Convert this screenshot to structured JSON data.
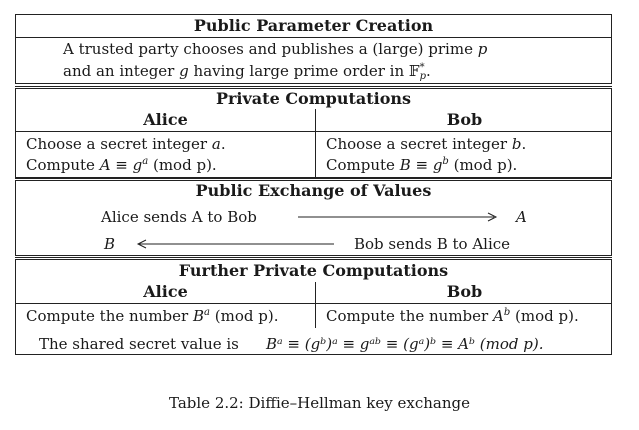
{
  "sections": {
    "public_parameter": {
      "title": "Public Parameter Creation",
      "line1_text": "A trusted party chooses and publishes a (large) prime",
      "line1_var": "p",
      "line2_text": "and an integer",
      "line2_var": "g",
      "line2_rest": "having large prime order in",
      "line2_field": "𝔽",
      "line2_field_sub": "p",
      "line2_field_sup": "*",
      "line2_end": "."
    },
    "private_computations": {
      "title": "Private Computations",
      "alice_header": "Alice",
      "bob_header": "Bob",
      "alice_line1": "Choose a secret integer",
      "alice_line1_var": "a",
      "alice_line2_pre": "Compute",
      "alice_line2_expr": "A ≡ g",
      "alice_line2_exp": "a",
      "alice_line2_mod": "(mod p).",
      "bob_line1": "Choose a secret integer",
      "bob_line1_var": "b",
      "bob_line2_pre": "Compute",
      "bob_line2_expr": "B ≡ g",
      "bob_line2_exp": "b",
      "bob_line2_mod": "(mod p)."
    },
    "public_exchange": {
      "title": "Public Exchange of Values",
      "row1_left": "Alice sends A to Bob",
      "row1_right": "A",
      "row2_left": "B",
      "row2_right": "Bob sends B to Alice"
    },
    "further_private": {
      "title": "Further Private Computations",
      "alice_header": "Alice",
      "bob_header": "Bob",
      "alice_line_pre": "Compute the number",
      "alice_base": "B",
      "alice_exp": "a",
      "alice_mod": "(mod p).",
      "bob_line_pre": "Compute the number",
      "bob_base": "A",
      "bob_exp": "b",
      "bob_mod": "(mod p).",
      "shared_label": "The shared secret value is",
      "shared_expr": "Bᵃ ≡ (gᵇ)ᵃ ≡ gᵃᵇ ≡ (gᵃ)ᵇ ≡ Aᵇ (mod p)."
    }
  },
  "caption": "Table 2.2: Diffie–Hellman key exchange"
}
